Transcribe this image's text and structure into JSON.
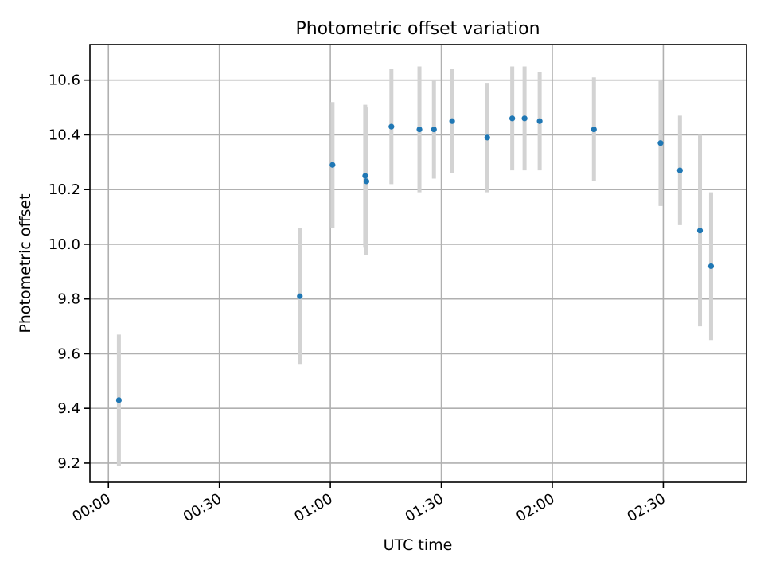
{
  "chart_data": {
    "type": "scatter",
    "title": "Photometric offset variation",
    "xlabel": "UTC time",
    "ylabel": "Photometric offset",
    "x_ticks": [
      "00:00",
      "00:30",
      "01:00",
      "01:30",
      "02:00",
      "02:30"
    ],
    "y_ticks": [
      "9.2",
      "9.4",
      "9.6",
      "9.8",
      "10.0",
      "10.2",
      "10.4",
      "10.6"
    ],
    "xlim": [
      "23:55:00",
      "02:52:30"
    ],
    "ylim": [
      9.13,
      10.73
    ],
    "grid": true,
    "points": [
      {
        "x": "00:02:50",
        "y": 9.43,
        "err": 0.24
      },
      {
        "x": "00:51:45",
        "y": 9.81,
        "err": 0.25
      },
      {
        "x": "01:00:35",
        "y": 10.29,
        "err": 0.23
      },
      {
        "x": "01:09:25",
        "y": 10.25,
        "err": 0.26
      },
      {
        "x": "01:09:45",
        "y": 10.23,
        "err": 0.27
      },
      {
        "x": "01:16:30",
        "y": 10.43,
        "err": 0.21
      },
      {
        "x": "01:24:05",
        "y": 10.42,
        "err": 0.23
      },
      {
        "x": "01:28:00",
        "y": 10.42,
        "err": 0.18
      },
      {
        "x": "01:32:55",
        "y": 10.45,
        "err": 0.19
      },
      {
        "x": "01:42:25",
        "y": 10.39,
        "err": 0.2
      },
      {
        "x": "01:49:10",
        "y": 10.46,
        "err": 0.19
      },
      {
        "x": "01:52:30",
        "y": 10.46,
        "err": 0.19
      },
      {
        "x": "01:56:35",
        "y": 10.45,
        "err": 0.18
      },
      {
        "x": "02:11:15",
        "y": 10.42,
        "err": 0.19
      },
      {
        "x": "02:29:15",
        "y": 10.37,
        "err": 0.23
      },
      {
        "x": "02:34:30",
        "y": 10.27,
        "err": 0.2
      },
      {
        "x": "02:39:55",
        "y": 10.05,
        "err": 0.35
      },
      {
        "x": "02:42:55",
        "y": 9.92,
        "err": 0.27
      }
    ],
    "colors": {
      "point": "#1f77b4",
      "errorbar": "#d3d3d3",
      "grid": "#b0b0b0"
    }
  }
}
